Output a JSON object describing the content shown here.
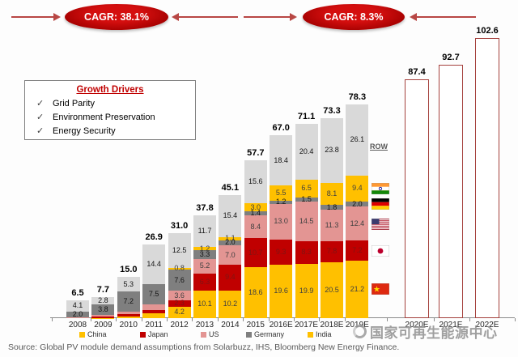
{
  "header": {
    "cagr_left": "CAGR: 38.1%",
    "cagr_right": "CAGR: 8.3%"
  },
  "growth_drivers": {
    "title": "Growth Drivers",
    "check_glyph": "✓",
    "items": [
      "Grid Parity",
      "Environment Preservation",
      "Energy Security"
    ]
  },
  "chart_data": {
    "type": "bar",
    "stacked": true,
    "title": "",
    "grid": false,
    "ylim": [
      0,
      105
    ],
    "legend_position": "bottom",
    "categories": [
      "2008",
      "2009",
      "2010",
      "2011",
      "2012",
      "2013",
      "2014",
      "2015",
      "2016E",
      "2017E",
      "2018E",
      "2019E"
    ],
    "totals": [
      "6.5",
      "7.7",
      "15.0",
      "26.9",
      "31.0",
      "37.8",
      "45.1",
      "57.7",
      "67.0",
      "71.1",
      "73.3",
      "78.3"
    ],
    "series": [
      {
        "name": "China",
        "color": "#FFC000",
        "label_color": "#3f3f3f",
        "values": [
          0.0,
          0.1,
          0.5,
          1.8,
          4.2,
          10.1,
          10.2,
          18.6,
          19.6,
          19.9,
          20.5,
          21.2
        ],
        "labels": [
          null,
          null,
          null,
          null,
          "4.2",
          "10.1",
          "10.2",
          "18.6",
          "19.6",
          "19.9",
          "20.5",
          "21.2"
        ]
      },
      {
        "name": "Japan",
        "color": "#C00000",
        "label_color": "#7f1412",
        "values": [
          0.25,
          0.55,
          1.0,
          1.3,
          2.3,
          6.3,
          9.4,
          10.7,
          9.3,
          8.3,
          7.8,
          7.2
        ],
        "labels": [
          null,
          null,
          null,
          null,
          "2.3",
          "6.3",
          "9.4",
          "10.7",
          "9.3",
          "8.3",
          "7.8",
          "7.2"
        ]
      },
      {
        "name": "US",
        "color": "#E39593",
        "label_color": "#3f3f3f",
        "values": [
          0.15,
          0.45,
          1.0,
          1.9,
          3.6,
          5.2,
          7.0,
          8.4,
          13.0,
          14.5,
          11.3,
          12.4
        ],
        "labels": [
          null,
          null,
          null,
          null,
          "3.6",
          "5.2",
          "7.0",
          "8.4",
          "13.0",
          "14.5",
          "11.3",
          "12.4"
        ]
      },
      {
        "name": "Germany",
        "color": "#7F7F7F",
        "label_color": "#141414",
        "values": [
          2.0,
          3.8,
          7.2,
          7.5,
          7.6,
          3.3,
          2.0,
          1.4,
          1.2,
          1.5,
          1.8,
          2.0
        ],
        "labels": [
          "2.0",
          "3.8",
          "7.2",
          "7.5",
          "7.6",
          "3.3",
          "2.0",
          "1.4",
          "1.2",
          "1.5",
          "1.8",
          "2.0"
        ]
      },
      {
        "name": "India",
        "color": "#FFC000",
        "label_color": "#3f3f3f",
        "values": [
          0,
          0,
          0,
          0,
          0.8,
          1.2,
          1.1,
          3.0,
          5.5,
          6.5,
          8.1,
          9.4
        ],
        "labels": [
          null,
          null,
          null,
          null,
          "0.8",
          "1.2",
          "1.1",
          "3.0",
          "5.5",
          "6.5",
          "8.1",
          "9.4"
        ]
      },
      {
        "name": "ROW",
        "color": "#D9D9D9",
        "label_color": "#141414",
        "values": [
          4.1,
          2.8,
          5.3,
          14.4,
          12.5,
          11.7,
          15.4,
          15.6,
          18.4,
          20.4,
          23.8,
          26.1
        ],
        "labels": [
          "4.1",
          "2.8",
          "5.3",
          "14.4",
          "12.5",
          "11.7",
          "15.4",
          "15.6",
          "18.4",
          "20.4",
          "23.8",
          "26.1"
        ]
      }
    ],
    "forecast": {
      "years": [
        "2020E",
        "2021E",
        "2022E"
      ],
      "totals": [
        "87.4",
        "92.7",
        "102.6"
      ],
      "outline_color": "#A5413D"
    },
    "annotations": [
      "CAGR: 38.1%",
      "CAGR: 8.3%"
    ]
  },
  "right_labels": {
    "row": "ROW",
    "flags": [
      "india-flag",
      "germany-flag",
      "us-flag",
      "japan-flag",
      "china-flag"
    ]
  },
  "legend": [
    {
      "label": "China",
      "color": "#FFC000"
    },
    {
      "label": "Japan",
      "color": "#C00000"
    },
    {
      "label": "US",
      "color": "#E39593"
    },
    {
      "label": "Germany",
      "color": "#7F7F7F"
    },
    {
      "label": "India",
      "color": "#FFC000"
    }
  ],
  "source": {
    "text": "Source:  Global PV module demand assumptions from Solarbuzz, IHS, Bloomberg New Energy Finance."
  },
  "watermark": {
    "text": "国家可再生能源中心"
  }
}
